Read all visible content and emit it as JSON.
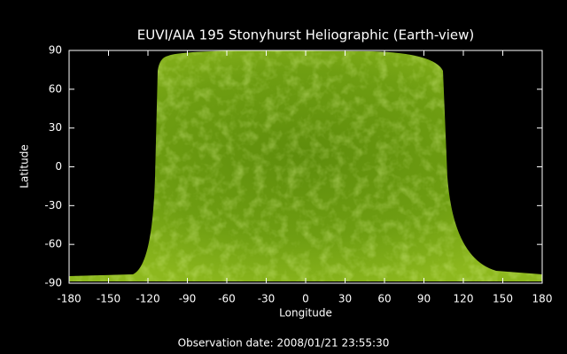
{
  "chart_data": {
    "type": "image",
    "title": "EUVI/AIA 195 Stonyhurst Heliographic (Earth-view)",
    "xlabel": "Longitude",
    "ylabel": "Latitude",
    "footer": "Observation date: 2008/01/21 23:55:30",
    "xlim": [
      -180,
      180
    ],
    "ylim": [
      -90,
      90
    ],
    "xticks": [
      -180,
      -150,
      -120,
      -90,
      -60,
      -30,
      0,
      30,
      60,
      90,
      120,
      150,
      180
    ],
    "yticks": [
      -90,
      -60,
      -30,
      0,
      30,
      60,
      90
    ]
  }
}
